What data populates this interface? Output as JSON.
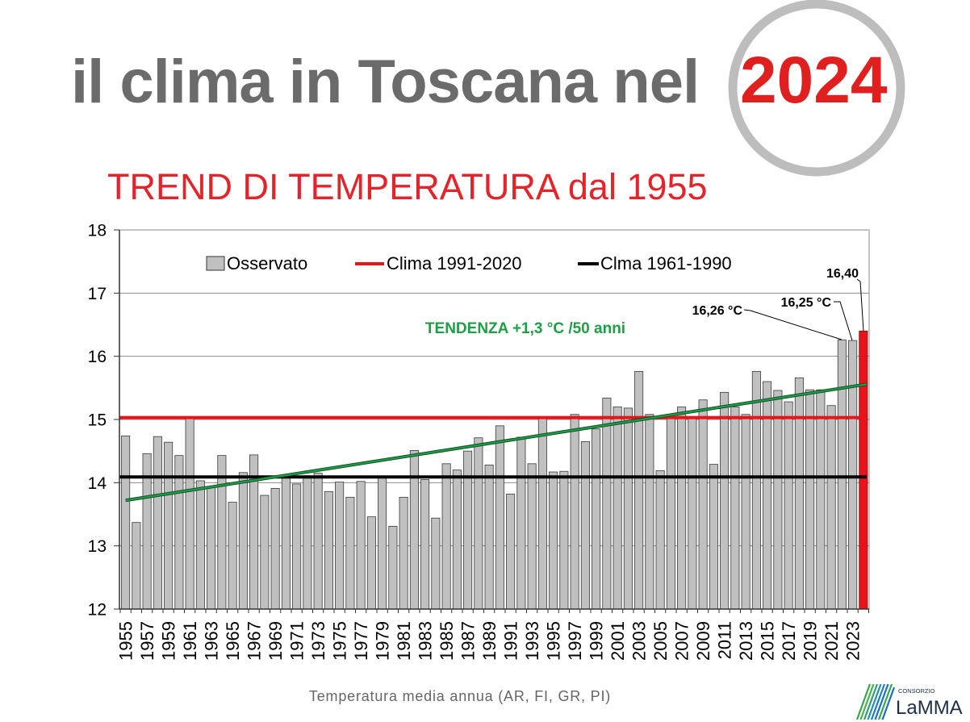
{
  "slide": {
    "title": "il clima in Toscana nel",
    "year": "2024",
    "subtitle": "TREND DI TEMPERATURA dal 1955",
    "footer": "Temperatura media annua (AR, FI, GR, PI)"
  },
  "logo": {
    "organization": "CONSORZIO",
    "name": "LaMMA"
  },
  "colors": {
    "title": "#6b6b6b",
    "year": "#e0201f",
    "subtitle": "#e3242b",
    "year_circle": "#bdbdbd",
    "footer": "#666666",
    "logo_text": "#1d2d4a",
    "logo_blue": "#1a6fc4",
    "logo_green": "#3aa64a"
  },
  "chart_data": {
    "type": "bar",
    "x": [
      1955,
      1956,
      1957,
      1958,
      1959,
      1960,
      1961,
      1962,
      1963,
      1964,
      1965,
      1966,
      1967,
      1968,
      1969,
      1970,
      1971,
      1972,
      1973,
      1974,
      1975,
      1976,
      1977,
      1978,
      1979,
      1980,
      1981,
      1982,
      1983,
      1984,
      1985,
      1986,
      1987,
      1988,
      1989,
      1990,
      1991,
      1992,
      1993,
      1994,
      1995,
      1996,
      1997,
      1998,
      1999,
      2000,
      2001,
      2002,
      2003,
      2004,
      2005,
      2006,
      2007,
      2008,
      2009,
      2010,
      2011,
      2012,
      2013,
      2014,
      2015,
      2016,
      2017,
      2018,
      2019,
      2020,
      2021,
      2022,
      2023,
      2024
    ],
    "x_tick_labels": [
      "1955",
      "1957",
      "1959",
      "1961",
      "1963",
      "1965",
      "1967",
      "1969",
      "1971",
      "1973",
      "1975",
      "1977",
      "1979",
      "1981",
      "1983",
      "1985",
      "1987",
      "1989",
      "1991",
      "1993",
      "1995",
      "1997",
      "1999",
      "2001",
      "2003",
      "2005",
      "2007",
      "2009",
      "2011",
      "2013",
      "2015",
      "2017",
      "2019",
      "2021",
      "2023"
    ],
    "series": [
      {
        "name": "Osservato",
        "color": "#c0c0c0",
        "values": [
          14.74,
          13.37,
          14.46,
          14.73,
          14.64,
          14.43,
          15.02,
          14.03,
          13.93,
          14.43,
          13.69,
          14.16,
          14.44,
          13.8,
          13.91,
          14.08,
          13.98,
          14.11,
          14.15,
          13.86,
          14.01,
          13.77,
          14.02,
          13.46,
          14.09,
          13.31,
          13.77,
          14.51,
          14.05,
          13.44,
          14.3,
          14.2,
          14.5,
          14.71,
          14.28,
          14.9,
          13.82,
          14.72,
          14.3,
          15.04,
          14.17,
          14.18,
          15.08,
          14.65,
          14.85,
          15.34,
          15.2,
          15.18,
          15.76,
          15.08,
          14.19,
          15.05,
          15.2,
          15.04,
          15.31,
          14.29,
          15.43,
          15.2,
          15.08,
          15.76,
          15.6,
          15.46,
          15.28,
          15.66,
          15.47,
          15.47,
          15.22,
          16.26,
          16.25,
          16.4
        ]
      }
    ],
    "highlight": {
      "x": 2024,
      "color": "#e8141b"
    },
    "reference_lines": [
      {
        "name": "Clima 1991-2020",
        "value": 15.03,
        "color": "#e8141b"
      },
      {
        "name": "Clma 1961-1990",
        "value": 14.09,
        "color": "#000000"
      }
    ],
    "trend": {
      "label": "TENDENZA +1,3 °C /50 anni",
      "x_start": 1955,
      "y_start": 13.72,
      "x_end": 2024,
      "y_end": 15.55,
      "color": "#1e9e45"
    },
    "annotations": [
      {
        "text": "16,26 °C",
        "x": 2022
      },
      {
        "text": "16,25 °C",
        "x": 2023
      },
      {
        "text": "16,40",
        "x": 2024
      }
    ],
    "ylim": [
      12,
      18
    ],
    "yticks": [
      12,
      13,
      14,
      15,
      16,
      17,
      18
    ],
    "grid": true,
    "legend": "top"
  }
}
